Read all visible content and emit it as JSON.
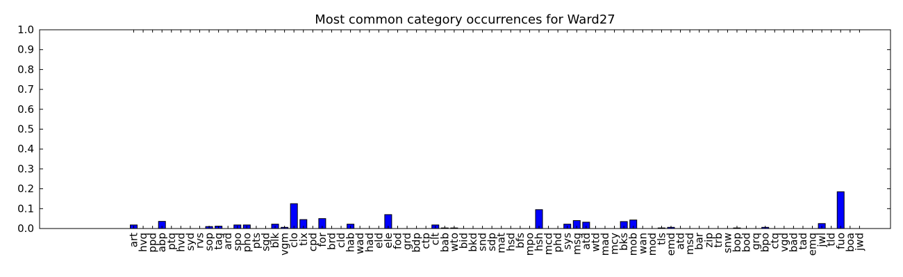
{
  "chart_data": {
    "type": "bar",
    "title": "Most common category occurrences for Ward27",
    "xlabel": "",
    "ylabel": "",
    "ylim": [
      0,
      1.0
    ],
    "yticks": [
      "0.0",
      "0.1",
      "0.2",
      "0.3",
      "0.4",
      "0.5",
      "0.6",
      "0.7",
      "0.8",
      "0.9",
      "1.0"
    ],
    "grid": false,
    "bar_color": "#0000ff",
    "categories": [
      "art",
      "hvq",
      "ppd",
      "abp",
      "ptq",
      "hvd",
      "syd",
      "rvs",
      "sop",
      "tag",
      "ard",
      "spo",
      "pho",
      "pts",
      "sgd",
      "blk",
      "vgm",
      "clo",
      "tix",
      "cpd",
      "for",
      "brd",
      "cld",
      "hab",
      "wad",
      "had",
      "eld",
      "ele",
      "fod",
      "grd",
      "bdp",
      "ctp",
      "clt",
      "bab",
      "wto",
      "bid",
      "bkd",
      "snd",
      "sdp",
      "mat",
      "hsd",
      "bfs",
      "mpo",
      "hsh",
      "mcd",
      "phd",
      "sys",
      "msg",
      "atd",
      "wtd",
      "mad",
      "mcy",
      "bks",
      "mob",
      "wan",
      "mod",
      "tls",
      "emd",
      "atd",
      "msd",
      "bar",
      "zip",
      "trb",
      "snw",
      "bop",
      "bod",
      "grq",
      "bpo",
      "ctq",
      "vgd",
      "bad",
      "tad",
      "emq",
      "jwl",
      "tld",
      "fuo",
      "boa",
      "jwd"
    ],
    "values": [
      0.018,
      0,
      0,
      0.036,
      0,
      0,
      0,
      0,
      0.01,
      0.012,
      0,
      0.018,
      0.018,
      0,
      0,
      0.022,
      0.006,
      0.125,
      0.045,
      0,
      0.05,
      0,
      0,
      0.022,
      0,
      0,
      0,
      0.07,
      0,
      0,
      0,
      0,
      0.018,
      0.003,
      0.003,
      0,
      0,
      0,
      0,
      0,
      0,
      0,
      0,
      0.095,
      0,
      0,
      0.022,
      0.04,
      0.032,
      0,
      0,
      0,
      0.035,
      0.043,
      0,
      0,
      0.003,
      0.006,
      0,
      0,
      0,
      0,
      0,
      0,
      0.003,
      0,
      0,
      0.006,
      0,
      0,
      0,
      0,
      0,
      0.025,
      0,
      0.185,
      0,
      0
    ]
  }
}
